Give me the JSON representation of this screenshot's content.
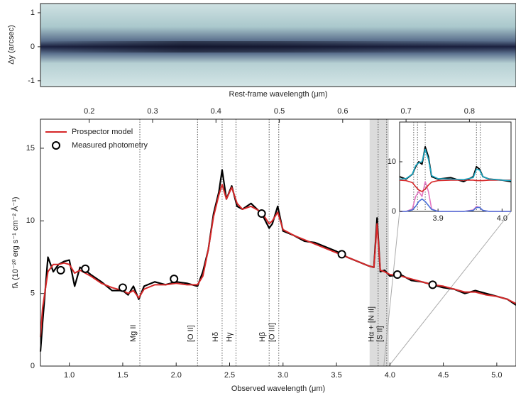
{
  "chart_data": [
    {
      "type": "spectrum2d",
      "ylabel": "Δy (arcsec)",
      "ylim": [
        -1.17,
        1.27
      ],
      "yticks": [
        1,
        0,
        -1
      ]
    },
    {
      "type": "line",
      "xlabel": "Observed wavelength (μm)",
      "ylabel": "fλ (10⁻²⁰ erg s⁻¹ cm⁻² Å⁻¹)",
      "x2label": "Rest-frame wavelength (μm)",
      "xlim": [
        0.73,
        5.18
      ],
      "ylim": [
        0,
        17
      ],
      "x2lim": [
        0.123,
        0.8735
      ],
      "xticks": [
        {
          "value": 1,
          "label": "1.0"
        },
        1.5,
        {
          "value": 2,
          "label": "2.0"
        },
        2.5,
        {
          "value": 3,
          "label": "3.0"
        },
        3.5,
        {
          "value": 4,
          "label": "4.0"
        },
        4.5,
        {
          "value": 5,
          "label": "5.0"
        }
      ],
      "yticks": [
        0,
        5,
        10,
        15
      ],
      "x2ticks": [
        0.2,
        0.3,
        0.4,
        0.5,
        0.6,
        0.7,
        0.8
      ],
      "band": [
        3.81,
        3.99
      ],
      "lines": [
        {
          "x": 1.66,
          "label": "Mg II"
        },
        {
          "x": 2.2,
          "label": "[O II]"
        },
        {
          "x": 2.43,
          "label": "Hδ"
        },
        {
          "x": 2.56,
          "label": "Hγ"
        },
        {
          "x": 2.87,
          "label": "Hβ"
        },
        {
          "x": 2.96,
          "label": "[O III]"
        },
        {
          "x": 3.89,
          "label": "Hα + [N II]"
        },
        {
          "x": 3.97,
          "label": "[S II]"
        }
      ],
      "x": [
        0.73,
        0.75,
        0.8,
        0.85,
        0.9,
        0.95,
        1.0,
        1.05,
        1.1,
        1.15,
        1.2,
        1.3,
        1.4,
        1.5,
        1.55,
        1.6,
        1.65,
        1.7,
        1.8,
        1.9,
        2.0,
        2.1,
        2.2,
        2.25,
        2.3,
        2.35,
        2.4,
        2.43,
        2.47,
        2.52,
        2.57,
        2.62,
        2.7,
        2.8,
        2.87,
        2.9,
        2.95,
        3.0,
        3.1,
        3.2,
        3.3,
        3.4,
        3.5,
        3.6,
        3.7,
        3.8,
        3.85,
        3.88,
        3.91,
        3.95,
        4.0,
        4.1,
        4.2,
        4.3,
        4.4,
        4.5,
        4.6,
        4.7,
        4.8,
        4.9,
        5.0,
        5.1,
        5.18
      ],
      "series": [
        {
          "color": "#000000",
          "values": [
            1,
            3,
            7.5,
            6.5,
            7,
            7.2,
            7.3,
            5.5,
            6.8,
            6.6,
            6.3,
            5.8,
            5.2,
            5.2,
            4.9,
            5.5,
            4.6,
            5.5,
            5.8,
            5.6,
            5.8,
            5.7,
            5.5,
            6.5,
            8,
            10.5,
            12,
            13.5,
            11.5,
            12.4,
            11,
            10.8,
            11.2,
            10.5,
            9.5,
            9.8,
            11,
            9.3,
            9,
            8.6,
            8.5,
            8.2,
            7.9,
            7.5,
            7.2,
            6.9,
            6.8,
            10.2,
            6.5,
            6.6,
            6.2,
            6.3,
            5.9,
            5.8,
            5.6,
            5.4,
            5.3,
            5,
            5.2,
            5,
            4.8,
            4.6,
            4.2
          ]
        },
        {
          "name": "Prospector model",
          "color": "#d62728",
          "values": [
            2,
            4,
            6.5,
            7,
            7,
            7.1,
            7,
            6.4,
            6.6,
            6.4,
            6.2,
            5.7,
            5.4,
            5.2,
            5.0,
            5.2,
            4.7,
            5.3,
            5.6,
            5.6,
            5.7,
            5.6,
            5.6,
            6.2,
            8,
            10.3,
            11.8,
            12.5,
            11.5,
            12.3,
            11.2,
            10.8,
            11,
            10.6,
            9.8,
            10,
            10.6,
            9.4,
            9,
            8.7,
            8.4,
            8.1,
            7.8,
            7.5,
            7.2,
            6.9,
            6.8,
            9.8,
            6.6,
            6.5,
            6.3,
            6.2,
            6,
            5.8,
            5.6,
            5.5,
            5.3,
            5.1,
            5.1,
            4.9,
            4.8,
            4.6,
            4.3
          ]
        }
      ],
      "photometry": {
        "name": "Measured photometry",
        "x": [
          0.92,
          1.15,
          1.5,
          1.98,
          2.8,
          3.55,
          4.07,
          4.4
        ],
        "values": [
          6.6,
          6.7,
          5.4,
          6.0,
          10.5,
          7.7,
          6.3,
          5.6
        ]
      }
    },
    {
      "type": "inset",
      "xlim": [
        3.84,
        4.014
      ],
      "ylim": [
        0,
        18
      ],
      "xticks": [
        3.9,
        {
          "value": 4,
          "label": "4.0"
        }
      ],
      "yticks": [
        0,
        10
      ],
      "markers": [
        3.862,
        3.868,
        3.88,
        3.96,
        3.966
      ],
      "x": [
        3.84,
        3.85,
        3.86,
        3.865,
        3.87,
        3.875,
        3.88,
        3.885,
        3.89,
        3.9,
        3.92,
        3.94,
        3.955,
        3.96,
        3.965,
        3.97,
        3.98,
        4.0,
        4.014
      ],
      "series": [
        {
          "color": "#000000",
          "values": [
            7,
            6.5,
            7.5,
            9,
            10,
            9.5,
            13,
            11,
            7,
            6.5,
            6.8,
            6,
            7,
            9,
            8.5,
            7,
            6.5,
            6.3,
            6
          ]
        },
        {
          "color": "#e377c2",
          "values": [
            0,
            0,
            0.5,
            3,
            4,
            3,
            6,
            4,
            0.5,
            0,
            0,
            0,
            0.3,
            1,
            0.8,
            0.2,
            0,
            0,
            0
          ]
        },
        {
          "color": "#4a6fd8",
          "values": [
            0,
            0,
            0.3,
            1,
            2,
            2.5,
            2,
            1.2,
            0.4,
            0,
            0,
            0,
            0.2,
            0.8,
            0.8,
            0.2,
            0,
            0,
            0
          ]
        },
        {
          "color": "#d62728",
          "values": [
            6.3,
            6.2,
            5.8,
            5,
            4.3,
            4,
            4.5,
            5.3,
            5.9,
            6.2,
            6.3,
            6.3,
            6.3,
            6.2,
            6.2,
            6.2,
            6.3,
            6.3,
            6.3
          ]
        },
        {
          "color": "#17a8c4",
          "values": [
            6.5,
            6.6,
            7.5,
            9.2,
            9.8,
            10,
            12.5,
            10.5,
            7.2,
            6.6,
            6.5,
            6.4,
            6.8,
            8.5,
            8.3,
            7,
            6.5,
            6.3,
            6.2
          ]
        }
      ]
    }
  ]
}
